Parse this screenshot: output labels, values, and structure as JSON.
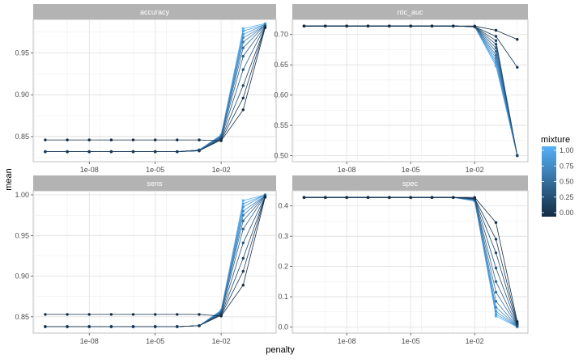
{
  "chart_data": {
    "type": "line",
    "xlabel": "penalty",
    "ylabel": "mean",
    "x_scale": "log10",
    "x_ticks": [
      1e-08,
      1e-05,
      0.01
    ],
    "x_tick_labels": [
      "1e-08",
      "1e-05",
      "1e-02"
    ],
    "x": [
      1e-10,
      1e-09,
      1e-08,
      1e-07,
      1e-06,
      1e-05,
      0.0001,
      0.001,
      0.01,
      0.1,
      1
    ],
    "legend": {
      "title": "mixture",
      "position": "right",
      "tick_values": [
        1.0,
        0.75,
        0.5,
        0.25,
        0.0
      ],
      "tick_labels": [
        "1.00",
        "0.75",
        "0.50",
        "0.25",
        "0.00"
      ],
      "color_low": "#132B43",
      "color_high": "#56B1F7"
    },
    "grid": true,
    "mixtures": [
      0,
      0.1,
      0.2,
      0.3,
      0.4,
      0.5,
      0.6,
      0.7,
      0.8,
      0.9,
      1
    ],
    "panels": [
      {
        "title": "accuracy",
        "ylim": [
          0.82,
          0.99
        ],
        "y_ticks": [
          0.85,
          0.9,
          0.95
        ],
        "y_tick_labels": [
          "0.85",
          "0.90",
          "0.95"
        ],
        "series": [
          {
            "mixture": 0,
            "values": [
              0.846,
              0.846,
              0.846,
              0.846,
              0.846,
              0.846,
              0.846,
              0.846,
              0.845,
              0.882,
              0.98
            ]
          },
          {
            "mixture": 0.1,
            "values": [
              0.832,
              0.832,
              0.832,
              0.832,
              0.832,
              0.832,
              0.832,
              0.833,
              0.846,
              0.896,
              0.981
            ]
          },
          {
            "mixture": 0.2,
            "values": [
              0.832,
              0.832,
              0.832,
              0.832,
              0.832,
              0.832,
              0.832,
              0.833,
              0.847,
              0.911,
              0.981
            ]
          },
          {
            "mixture": 0.3,
            "values": [
              0.832,
              0.832,
              0.832,
              0.832,
              0.832,
              0.832,
              0.832,
              0.833,
              0.848,
              0.93,
              0.982
            ]
          },
          {
            "mixture": 0.4,
            "values": [
              0.832,
              0.832,
              0.832,
              0.832,
              0.832,
              0.832,
              0.832,
              0.833,
              0.849,
              0.946,
              0.982
            ]
          },
          {
            "mixture": 0.5,
            "values": [
              0.832,
              0.832,
              0.832,
              0.832,
              0.832,
              0.832,
              0.832,
              0.834,
              0.85,
              0.956,
              0.983
            ]
          },
          {
            "mixture": 0.6,
            "values": [
              0.832,
              0.832,
              0.832,
              0.832,
              0.832,
              0.832,
              0.832,
              0.834,
              0.85,
              0.963,
              0.983
            ]
          },
          {
            "mixture": 0.7,
            "values": [
              0.832,
              0.832,
              0.832,
              0.832,
              0.832,
              0.832,
              0.832,
              0.834,
              0.851,
              0.968,
              0.983
            ]
          },
          {
            "mixture": 0.8,
            "values": [
              0.832,
              0.832,
              0.832,
              0.832,
              0.832,
              0.832,
              0.832,
              0.834,
              0.851,
              0.972,
              0.984
            ]
          },
          {
            "mixture": 0.9,
            "values": [
              0.832,
              0.832,
              0.832,
              0.832,
              0.832,
              0.832,
              0.832,
              0.834,
              0.852,
              0.976,
              0.984
            ]
          },
          {
            "mixture": 1,
            "values": [
              0.832,
              0.832,
              0.832,
              0.832,
              0.832,
              0.832,
              0.832,
              0.834,
              0.852,
              0.979,
              0.985
            ]
          }
        ]
      },
      {
        "title": "roc_auc",
        "ylim": [
          0.49,
          0.725
        ],
        "y_ticks": [
          0.5,
          0.55,
          0.6,
          0.65,
          0.7
        ],
        "y_tick_labels": [
          "0.50",
          "0.55",
          "0.60",
          "0.65",
          "0.70"
        ],
        "series": [
          {
            "mixture": 0,
            "values": [
              0.714,
              0.714,
              0.714,
              0.714,
              0.714,
              0.714,
              0.714,
              0.714,
              0.714,
              0.707,
              0.692
            ]
          },
          {
            "mixture": 0.1,
            "values": [
              0.714,
              0.714,
              0.714,
              0.714,
              0.714,
              0.714,
              0.714,
              0.714,
              0.713,
              0.697,
              0.646
            ]
          },
          {
            "mixture": 0.2,
            "values": [
              0.714,
              0.714,
              0.714,
              0.714,
              0.714,
              0.714,
              0.714,
              0.714,
              0.713,
              0.69,
              0.5
            ]
          },
          {
            "mixture": 0.3,
            "values": [
              0.714,
              0.714,
              0.714,
              0.714,
              0.714,
              0.714,
              0.714,
              0.714,
              0.713,
              0.684,
              0.5
            ]
          },
          {
            "mixture": 0.4,
            "values": [
              0.714,
              0.714,
              0.714,
              0.714,
              0.714,
              0.714,
              0.714,
              0.714,
              0.713,
              0.678,
              0.5
            ]
          },
          {
            "mixture": 0.5,
            "values": [
              0.714,
              0.714,
              0.714,
              0.714,
              0.714,
              0.714,
              0.714,
              0.714,
              0.713,
              0.672,
              0.5
            ]
          },
          {
            "mixture": 0.6,
            "values": [
              0.714,
              0.714,
              0.714,
              0.714,
              0.714,
              0.714,
              0.714,
              0.714,
              0.713,
              0.666,
              0.5
            ]
          },
          {
            "mixture": 0.7,
            "values": [
              0.714,
              0.714,
              0.714,
              0.714,
              0.714,
              0.714,
              0.714,
              0.714,
              0.713,
              0.661,
              0.5
            ]
          },
          {
            "mixture": 0.8,
            "values": [
              0.714,
              0.714,
              0.714,
              0.714,
              0.714,
              0.714,
              0.714,
              0.714,
              0.713,
              0.656,
              0.5
            ]
          },
          {
            "mixture": 0.9,
            "values": [
              0.714,
              0.714,
              0.714,
              0.714,
              0.714,
              0.714,
              0.714,
              0.714,
              0.713,
              0.652,
              0.5
            ]
          },
          {
            "mixture": 1,
            "values": [
              0.714,
              0.714,
              0.714,
              0.714,
              0.714,
              0.714,
              0.714,
              0.714,
              0.713,
              0.648,
              0.5
            ]
          }
        ]
      },
      {
        "title": "sens",
        "ylim": [
          0.83,
          1.005
        ],
        "y_ticks": [
          0.85,
          0.9,
          0.95,
          1.0
        ],
        "y_tick_labels": [
          "0.85",
          "0.90",
          "0.95",
          "1.00"
        ],
        "series": [
          {
            "mixture": 0,
            "values": [
              0.853,
              0.853,
              0.853,
              0.853,
              0.853,
              0.853,
              0.853,
              0.853,
              0.851,
              0.889,
              0.997
            ]
          },
          {
            "mixture": 0.1,
            "values": [
              0.838,
              0.838,
              0.838,
              0.838,
              0.838,
              0.838,
              0.838,
              0.839,
              0.852,
              0.906,
              0.998
            ]
          },
          {
            "mixture": 0.2,
            "values": [
              0.838,
              0.838,
              0.838,
              0.838,
              0.838,
              0.838,
              0.838,
              0.839,
              0.853,
              0.922,
              0.998
            ]
          },
          {
            "mixture": 0.3,
            "values": [
              0.838,
              0.838,
              0.838,
              0.838,
              0.838,
              0.838,
              0.838,
              0.839,
              0.854,
              0.941,
              0.998
            ]
          },
          {
            "mixture": 0.4,
            "values": [
              0.838,
              0.838,
              0.838,
              0.838,
              0.838,
              0.838,
              0.838,
              0.839,
              0.855,
              0.958,
              0.999
            ]
          },
          {
            "mixture": 0.5,
            "values": [
              0.838,
              0.838,
              0.838,
              0.838,
              0.838,
              0.838,
              0.838,
              0.839,
              0.856,
              0.968,
              0.999
            ]
          },
          {
            "mixture": 0.6,
            "values": [
              0.838,
              0.838,
              0.838,
              0.838,
              0.838,
              0.838,
              0.838,
              0.839,
              0.856,
              0.975,
              0.999
            ]
          },
          {
            "mixture": 0.7,
            "values": [
              0.838,
              0.838,
              0.838,
              0.838,
              0.838,
              0.838,
              0.838,
              0.839,
              0.857,
              0.98,
              0.999
            ]
          },
          {
            "mixture": 0.8,
            "values": [
              0.838,
              0.838,
              0.838,
              0.838,
              0.838,
              0.838,
              0.838,
              0.839,
              0.857,
              0.985,
              1.0
            ]
          },
          {
            "mixture": 0.9,
            "values": [
              0.838,
              0.838,
              0.838,
              0.838,
              0.838,
              0.838,
              0.838,
              0.839,
              0.858,
              0.989,
              1.0
            ]
          },
          {
            "mixture": 1,
            "values": [
              0.838,
              0.838,
              0.838,
              0.838,
              0.838,
              0.838,
              0.838,
              0.839,
              0.858,
              0.993,
              1.0
            ]
          }
        ]
      },
      {
        "title": "spec",
        "ylim": [
          -0.02,
          0.45
        ],
        "y_ticks": [
          0.0,
          0.1,
          0.2,
          0.3,
          0.4
        ],
        "y_tick_labels": [
          "0.0",
          "0.1",
          "0.2",
          "0.3",
          "0.4"
        ],
        "series": [
          {
            "mixture": 0,
            "values": [
              0.428,
              0.428,
              0.428,
              0.428,
              0.428,
              0.428,
              0.428,
              0.428,
              0.428,
              0.345,
              0.018
            ]
          },
          {
            "mixture": 0.1,
            "values": [
              0.428,
              0.428,
              0.428,
              0.428,
              0.428,
              0.428,
              0.428,
              0.428,
              0.425,
              0.29,
              0.012
            ]
          },
          {
            "mixture": 0.2,
            "values": [
              0.428,
              0.428,
              0.428,
              0.428,
              0.428,
              0.428,
              0.428,
              0.428,
              0.424,
              0.245,
              0.008
            ]
          },
          {
            "mixture": 0.3,
            "values": [
              0.428,
              0.428,
              0.428,
              0.428,
              0.428,
              0.428,
              0.428,
              0.428,
              0.423,
              0.195,
              0.006
            ]
          },
          {
            "mixture": 0.4,
            "values": [
              0.428,
              0.428,
              0.428,
              0.428,
              0.428,
              0.428,
              0.428,
              0.428,
              0.422,
              0.15,
              0.004
            ]
          },
          {
            "mixture": 0.5,
            "values": [
              0.428,
              0.428,
              0.428,
              0.428,
              0.428,
              0.428,
              0.428,
              0.428,
              0.421,
              0.115,
              0.003
            ]
          },
          {
            "mixture": 0.6,
            "values": [
              0.428,
              0.428,
              0.428,
              0.428,
              0.428,
              0.428,
              0.428,
              0.428,
              0.42,
              0.085,
              0.002
            ]
          },
          {
            "mixture": 0.7,
            "values": [
              0.428,
              0.428,
              0.428,
              0.428,
              0.428,
              0.428,
              0.428,
              0.428,
              0.419,
              0.065,
              0.002
            ]
          },
          {
            "mixture": 0.8,
            "values": [
              0.428,
              0.428,
              0.428,
              0.428,
              0.428,
              0.428,
              0.428,
              0.428,
              0.418,
              0.052,
              0.001
            ]
          },
          {
            "mixture": 0.9,
            "values": [
              0.428,
              0.428,
              0.428,
              0.428,
              0.428,
              0.428,
              0.428,
              0.428,
              0.417,
              0.043,
              0.001
            ]
          },
          {
            "mixture": 1,
            "values": [
              0.428,
              0.428,
              0.428,
              0.428,
              0.428,
              0.428,
              0.428,
              0.428,
              0.416,
              0.036,
              0.0
            ]
          }
        ]
      }
    ]
  }
}
